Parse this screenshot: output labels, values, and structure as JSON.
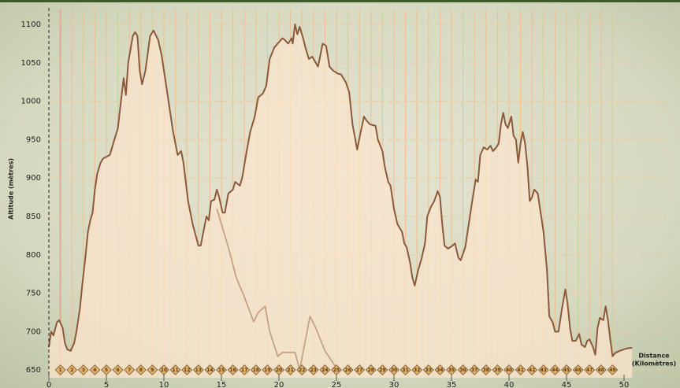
{
  "chart_data": {
    "type": "line",
    "y_label": "Altitude (mètres)",
    "x_label": [
      "Distance",
      "(Kilomètres)"
    ],
    "xlim": [
      0,
      52.3
    ],
    "ylim": [
      640,
      1120
    ],
    "xticks": [
      0,
      5,
      10,
      15,
      20,
      25,
      30,
      35,
      40,
      45,
      50
    ],
    "yticks": [
      650,
      700,
      750,
      800,
      850,
      900,
      950,
      1000,
      1050,
      1100
    ],
    "grid": true,
    "km_markers": [
      1,
      2,
      3,
      4,
      5,
      6,
      7,
      8,
      9,
      10,
      11,
      12,
      13,
      14,
      15,
      16,
      17,
      18,
      19,
      20,
      21,
      22,
      23,
      24,
      25,
      26,
      27,
      28,
      29,
      30,
      31,
      32,
      33,
      34,
      35,
      36,
      37,
      38,
      39,
      40,
      41,
      42,
      43,
      44,
      45,
      46,
      47,
      48,
      49
    ],
    "series": [
      {
        "color": "#8b5a3c",
        "fill": true,
        "x": [
          0,
          0.2,
          0.4,
          0.7,
          0.9,
          1.2,
          1.4,
          1.6,
          1.9,
          2.2,
          2.4,
          2.7,
          2.9,
          3.2,
          3.4,
          3.6,
          3.8,
          4.0,
          4.2,
          4.5,
          4.7,
          5.3,
          6.0,
          6.5,
          6.7,
          6.9,
          7.3,
          7.5,
          7.7,
          7.9,
          8.1,
          8.4,
          8.8,
          9.1,
          9.5,
          9.8,
          10.1,
          10.5,
          10.8,
          11.2,
          11.5,
          11.7,
          12.1,
          12.5,
          13.0,
          13.2,
          13.7,
          13.9,
          14.1,
          14.4,
          14.6,
          14.8,
          15.1,
          15.3,
          15.6,
          16.0,
          16.2,
          16.6,
          16.8,
          17.2,
          17.5,
          17.9,
          18.2,
          18.6,
          18.9,
          19.2,
          19.6,
          19.9,
          20.3,
          20.5,
          20.8,
          21.1,
          21.2,
          21.4,
          21.6,
          21.8,
          22.1,
          22.3,
          22.6,
          22.9,
          23.2,
          23.4,
          23.6,
          23.8,
          24.1,
          24.4,
          24.7,
          25.1,
          25.4,
          25.8,
          26.1,
          26.4,
          26.8,
          27.1,
          27.4,
          27.6,
          27.9,
          28.4,
          28.6,
          29.0,
          29.2,
          29.5,
          29.7,
          30.0,
          30.3,
          30.7,
          30.9,
          31.1,
          31.4,
          31.6,
          31.8,
          32.1,
          32.4,
          32.7,
          32.9,
          33.2,
          33.5,
          33.8,
          34.0,
          34.2,
          34.4,
          34.7,
          35.1,
          35.3,
          35.6,
          35.8,
          36.2,
          36.5,
          36.8,
          37.1,
          37.3,
          37.5,
          37.8,
          38.1,
          38.4,
          38.6,
          38.9,
          39.1,
          39.3,
          39.5,
          39.7,
          39.9,
          40.2,
          40.4,
          40.6,
          40.8,
          41.0,
          41.2,
          41.4,
          41.6,
          41.8,
          42.0,
          42.2,
          42.5,
          42.7,
          43.0,
          43.3,
          43.5,
          43.8,
          44.0,
          44.3,
          44.6,
          44.9,
          45.1,
          45.3,
          45.5,
          45.8,
          46.1,
          46.3,
          46.6,
          46.8,
          47.0,
          47.3,
          47.5,
          47.7,
          47.9,
          48.2,
          48.4,
          48.6,
          48.8,
          49.0,
          49.2,
          49.6,
          50.2,
          50.7
        ],
        "values": [
          680,
          700,
          695,
          712,
          715,
          705,
          685,
          677,
          675,
          685,
          700,
          730,
          760,
          800,
          830,
          845,
          855,
          885,
          905,
          920,
          925,
          930,
          965,
          1030,
          1008,
          1050,
          1085,
          1090,
          1085,
          1040,
          1022,
          1040,
          1085,
          1092,
          1080,
          1060,
          1030,
          990,
          960,
          930,
          935,
          920,
          870,
          840,
          812,
          812,
          850,
          845,
          870,
          872,
          885,
          875,
          855,
          855,
          880,
          885,
          895,
          890,
          900,
          935,
          960,
          980,
          1005,
          1010,
          1020,
          1055,
          1070,
          1075,
          1082,
          1080,
          1075,
          1082,
          1075,
          1100,
          1087,
          1097,
          1082,
          1070,
          1055,
          1058,
          1050,
          1045,
          1060,
          1075,
          1072,
          1045,
          1040,
          1036,
          1035,
          1025,
          1012,
          970,
          937,
          960,
          980,
          975,
          970,
          968,
          950,
          935,
          915,
          895,
          890,
          860,
          840,
          830,
          815,
          810,
          790,
          770,
          760,
          780,
          795,
          815,
          850,
          862,
          870,
          883,
          875,
          840,
          812,
          808,
          812,
          815,
          796,
          793,
          810,
          840,
          870,
          898,
          895,
          930,
          940,
          937,
          942,
          935,
          940,
          945,
          970,
          985,
          970,
          965,
          980,
          955,
          950,
          920,
          945,
          960,
          945,
          915,
          870,
          875,
          885,
          880,
          860,
          830,
          780,
          720,
          712,
          700,
          700,
          730,
          755,
          735,
          705,
          688,
          688,
          697,
          683,
          680,
          688,
          690,
          680,
          670,
          705,
          718,
          715,
          733,
          715,
          690,
          668,
          672,
          675,
          678,
          679
        ]
      },
      {
        "color": "#c4a184",
        "fill": false,
        "x": [
          14.6,
          15.6,
          16.3,
          17.0,
          17.8,
          18.2,
          18.8,
          19.2,
          19.9,
          20.3,
          21.4,
          21.8,
          22.7,
          23.2,
          24.0,
          24.9,
          25.1
        ],
        "values": [
          860,
          810,
          770,
          745,
          713,
          725,
          733,
          700,
          668,
          673,
          673,
          650,
          720,
          705,
          675,
          655,
          650
        ]
      }
    ]
  }
}
